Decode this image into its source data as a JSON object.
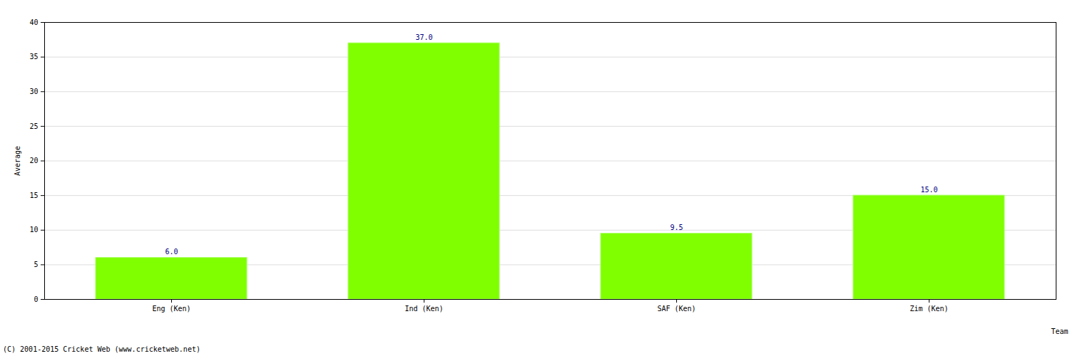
{
  "chart_data": {
    "type": "bar",
    "categories": [
      "Eng (Ken)",
      "Ind (Ken)",
      "SAF (Ken)",
      "Zim (Ken)"
    ],
    "values": [
      6.0,
      37.0,
      9.5,
      15.0
    ],
    "value_labels": [
      "6.0",
      "37.0",
      "9.5",
      "15.0"
    ],
    "data_labels": true,
    "color": "#7fff00",
    "x_label": "Team",
    "y_label": "Average",
    "ylim": [
      0,
      40
    ],
    "yticks": [
      0,
      5,
      10,
      15,
      20,
      25,
      30,
      35,
      40
    ],
    "grid": true,
    "caption": "(C) 2001-2015 Cricket Web (www.cricketweb.net)"
  }
}
